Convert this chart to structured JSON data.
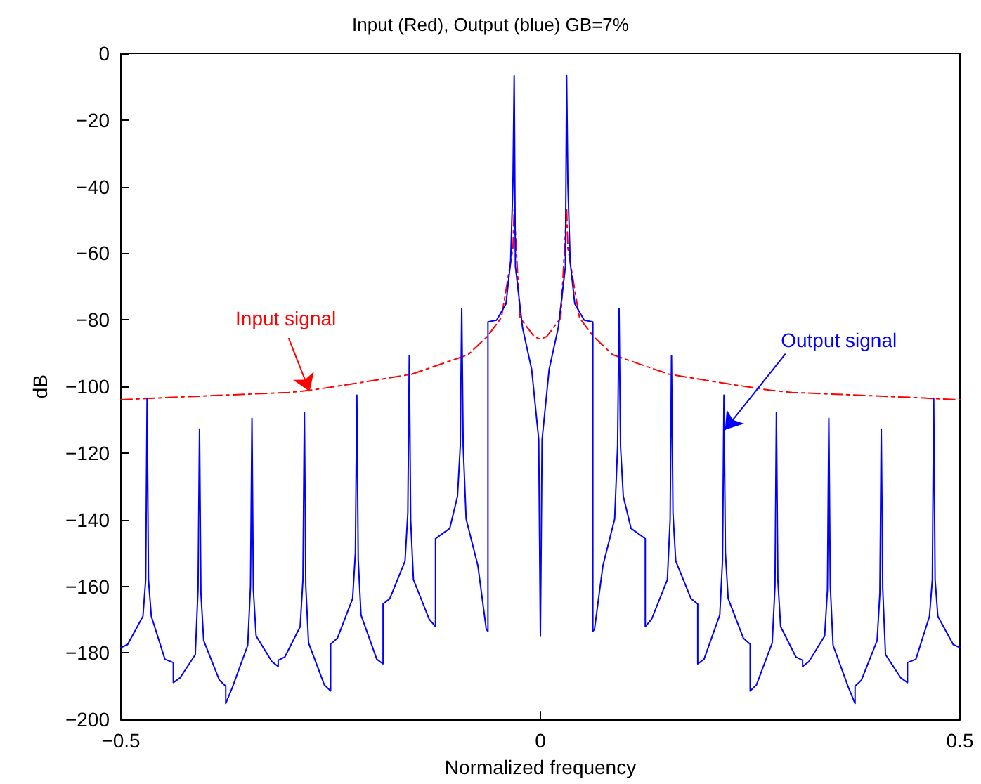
{
  "chart_data": {
    "type": "line",
    "title": "Input (Red), Output (blue) GB=7%",
    "xlabel": "Normalized frequency",
    "ylabel": "dB",
    "xlim": [
      -0.5,
      0.5
    ],
    "xticks": [
      -0.5,
      0,
      0.5
    ],
    "ylim": [
      -200,
      0
    ],
    "yticks": [
      -200,
      -180,
      -160,
      -140,
      -120,
      -100,
      -80,
      -60,
      -40,
      -20,
      0
    ],
    "grid": false,
    "marker": "none",
    "annotations": [
      {
        "text": "Input signal",
        "x": -0.275,
        "y": -101.5
      },
      {
        "text": "Output signal",
        "x": 0.22,
        "y": -113
      }
    ],
    "series": [
      {
        "color": "#ff0000",
        "line_style": "dashdot",
        "x": [
          -0.5,
          -0.443,
          -0.3,
          -0.2755,
          -0.2203,
          -0.153,
          -0.0863,
          -0.0633,
          -0.0466,
          -0.0437,
          -0.0327,
          -0.0313,
          -0.0243,
          -0.0075,
          0,
          0.0075,
          0.0243,
          0.0313,
          0.0327,
          0.0437,
          0.0466,
          0.0633,
          0.0863,
          0.153,
          0.2203,
          0.2755,
          0.3,
          0.443,
          0.5
        ],
        "values": [
          -104,
          -103.3,
          -101.8,
          -101.2,
          -99.1,
          -96.3,
          -90.5,
          -85,
          -79.4,
          -75.2,
          -58.4,
          -47,
          -79.4,
          -85,
          -85.8,
          -85,
          -79.4,
          -47,
          -58.4,
          -75.2,
          -79.4,
          -85,
          -90.5,
          -96.3,
          -99.1,
          -101.2,
          -101.8,
          -103.3,
          -104
        ]
      },
      {
        "color": "#0000ff",
        "line_style": "solid",
        "x": [
          -0.5,
          -0.492,
          -0.4737,
          -0.4704,
          -0.46875,
          -0.4671,
          -0.4637,
          -0.4475,
          -0.4375,
          -0.4375,
          -0.4295,
          -0.4113,
          -0.408,
          -0.40625,
          -0.4046,
          -0.4013,
          -0.3825,
          -0.375,
          -0.375,
          -0.367,
          -0.3488,
          -0.3455,
          -0.34375,
          -0.3421,
          -0.3388,
          -0.32,
          -0.3125,
          -0.3125,
          -0.3045,
          -0.2863,
          -0.283,
          -0.28125,
          -0.2796,
          -0.2763,
          -0.2575,
          -0.25,
          -0.25,
          -0.242,
          -0.2238,
          -0.2205,
          -0.21875,
          -0.2171,
          -0.2138,
          -0.195,
          -0.1875,
          -0.1875,
          -0.1795,
          -0.1613,
          -0.158,
          -0.15625,
          -0.1546,
          -0.1513,
          -0.1325,
          -0.125,
          -0.125,
          -0.108,
          -0.0988,
          -0.0955,
          -0.09375,
          -0.092,
          -0.0885,
          -0.0745,
          -0.0645,
          -0.0625,
          -0.0625,
          -0.0522,
          -0.041,
          -0.0355,
          -0.0327,
          -0.03125,
          -0.0298,
          -0.0214,
          -0.0104,
          -0.002,
          0,
          0.002,
          0.0104,
          0.0214,
          0.0298,
          0.03125,
          0.0327,
          0.0355,
          0.041,
          0.0522,
          0.0625,
          0.0625,
          0.0645,
          0.0745,
          0.0885,
          0.092,
          0.09375,
          0.0955,
          0.0988,
          0.108,
          0.125,
          0.125,
          0.1325,
          0.1513,
          0.1546,
          0.15625,
          0.158,
          0.1613,
          0.1795,
          0.1875,
          0.1875,
          0.195,
          0.2138,
          0.2171,
          0.21875,
          0.2205,
          0.2238,
          0.242,
          0.25,
          0.25,
          0.2575,
          0.2763,
          0.2796,
          0.28125,
          0.283,
          0.2863,
          0.3045,
          0.3125,
          0.3125,
          0.32,
          0.3388,
          0.3421,
          0.34375,
          0.3455,
          0.3488,
          0.367,
          0.375,
          0.375,
          0.3825,
          0.4013,
          0.4046,
          0.40625,
          0.408,
          0.4113,
          0.4295,
          0.4375,
          0.4375,
          0.4475,
          0.4637,
          0.4671,
          0.46875,
          0.4704,
          0.4737,
          0.492,
          0.5
        ],
        "values": [
          -178.4,
          -177.5,
          -169,
          -158,
          -103.5,
          -158,
          -169,
          -181.9,
          -182.9,
          -188.9,
          -187.5,
          -180.5,
          -160.8,
          -112.8,
          -162,
          -176.3,
          -188.2,
          -190,
          -195.2,
          -190.3,
          -177.7,
          -160,
          -109.6,
          -161,
          -174.9,
          -182.6,
          -184.1,
          -182.2,
          -181.2,
          -172.1,
          -158,
          -107.8,
          -160,
          -177,
          -189.6,
          -191.4,
          -177.4,
          -175.6,
          -163.7,
          -150,
          -102.6,
          -152,
          -168.6,
          -181.9,
          -183.3,
          -165.3,
          -163.7,
          -152.4,
          -138,
          -90.7,
          -140,
          -158,
          -169.9,
          -172.1,
          -145.7,
          -142.6,
          -133,
          -118,
          -76.6,
          -118,
          -139.8,
          -153.8,
          -172.9,
          -173.5,
          -80.6,
          -80.1,
          -75.2,
          -62.6,
          -38.9,
          -6.7,
          -64,
          -82.2,
          -94.9,
          -115.9,
          -175,
          -115.9,
          -94.9,
          -82.2,
          -64,
          -6.7,
          -38.9,
          -62.6,
          -75.2,
          -80.1,
          -80.6,
          -173.5,
          -172.9,
          -153.8,
          -139.8,
          -118,
          -76.6,
          -118,
          -133,
          -142.6,
          -145.7,
          -172.1,
          -169.9,
          -158,
          -140,
          -90.7,
          -138,
          -152.4,
          -163.7,
          -165.3,
          -183.3,
          -181.9,
          -168.6,
          -152,
          -102.6,
          -150,
          -163.7,
          -175.6,
          -177.4,
          -191.4,
          -189.6,
          -177,
          -160,
          -107.8,
          -158,
          -172.1,
          -181.2,
          -182.2,
          -184.1,
          -182.6,
          -174.9,
          -161,
          -109.6,
          -160,
          -177.7,
          -190.3,
          -195.2,
          -190,
          -188.2,
          -176.3,
          -162,
          -112.8,
          -160.8,
          -180.5,
          -187.5,
          -188.9,
          -182.9,
          -181.9,
          -169,
          -158,
          -103.5,
          -158,
          -169,
          -177.5,
          -178.4
        ]
      }
    ]
  }
}
